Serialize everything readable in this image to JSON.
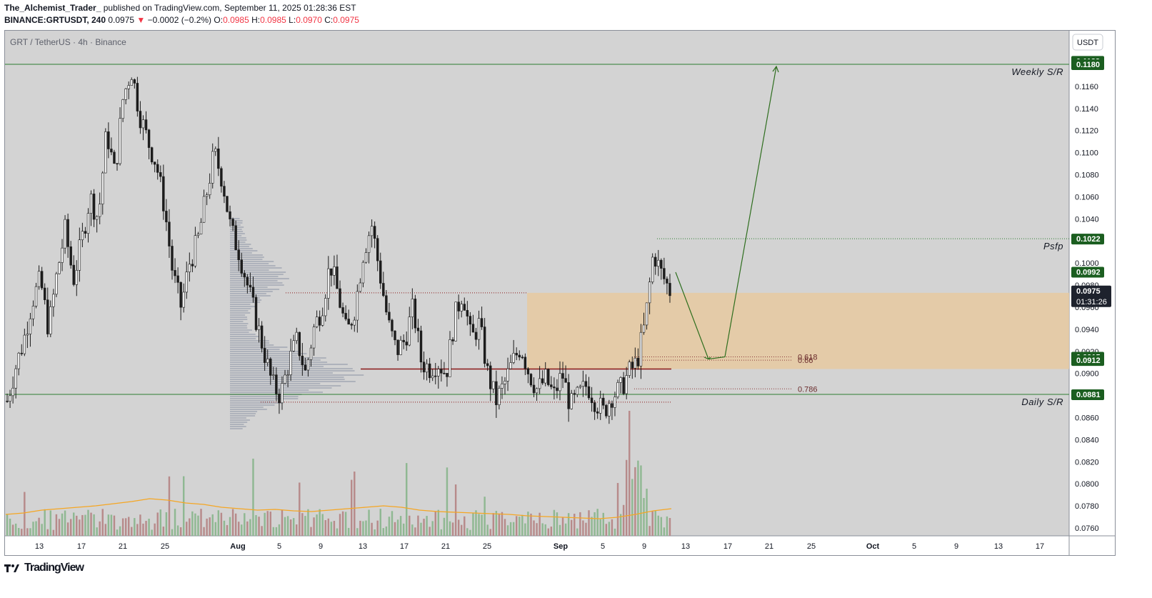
{
  "header": {
    "author": "The_Alchemist_Trader_",
    "published": "published on TradingView.com, September 11, 2025 01:28:36 EST",
    "symbol": "BINANCE:GRTUSDT, 240",
    "last": "0.0975",
    "change_arrow": "▼",
    "change": "−0.0002 (−0.2%)",
    "o_label": "O:",
    "o_value": "0.0985",
    "h_label": "H:",
    "h_value": "0.0985",
    "l_label": "L:",
    "l_value": "0.0970",
    "c_label": "C:",
    "c_value": "0.0975"
  },
  "footer": {
    "brand": "TradingView",
    "logo": "tradingview-logo-icon"
  },
  "colors": {
    "background": "#d3d3d3",
    "candle": "#1c1c1c",
    "zone": "#e6c9a0",
    "green_label": "#1b5e20",
    "current_price_label": "#1e222d",
    "arrow": "#2e6e1e",
    "red_line": "#8b1a1a",
    "fib_line": "#8b3a3a",
    "volume_up": "#8fb892",
    "volume_down": "#b78a8a",
    "volume_ma": "#f5a623"
  },
  "chart_data": {
    "type": "candlestick",
    "title": "GRT / TetherUS · 4h · Binance",
    "currency": "USDT",
    "ylim": [
      0.075,
      0.119
    ],
    "y_ticks": [
      "0.1160",
      "0.1140",
      "0.1120",
      "0.1100",
      "0.1080",
      "0.1060",
      "0.1040",
      "0.1000",
      "0.0980",
      "0.0960",
      "0.0940",
      "0.0920",
      "0.0900",
      "0.0860",
      "0.0840",
      "0.0820",
      "0.0800",
      "0.0780",
      "0.0760"
    ],
    "x_ticks": [
      "13",
      "17",
      "21",
      "25",
      "Aug",
      "5",
      "9",
      "13",
      "17",
      "21",
      "25",
      "Sep",
      "5",
      "9",
      "13",
      "17",
      "21",
      "25",
      "Oct",
      "5",
      "9",
      "13",
      "17"
    ],
    "price_path": [
      0.0875,
      0.0905,
      0.093,
      0.0965,
      0.0985,
      0.094,
      0.099,
      0.103,
      0.0985,
      0.102,
      0.106,
      0.104,
      0.112,
      0.108,
      0.115,
      0.1175,
      0.1135,
      0.111,
      0.109,
      0.105,
      0.099,
      0.096,
      0.1,
      0.102,
      0.106,
      0.11,
      0.1075,
      0.103,
      0.101,
      0.098,
      0.095,
      0.092,
      0.089,
      0.088,
      0.091,
      0.093,
      0.09,
      0.094,
      0.096,
      0.1,
      0.097,
      0.0935,
      0.096,
      0.101,
      0.1035,
      0.099,
      0.0945,
      0.092,
      0.093,
      0.096,
      0.091,
      0.0905,
      0.091,
      0.09,
      0.095,
      0.0975,
      0.093,
      0.0945,
      0.09,
      0.0875,
      0.089,
      0.091,
      0.0925,
      0.09,
      0.0885,
      0.0895,
      0.088,
      0.09,
      0.087,
      0.088,
      0.089,
      0.0875,
      0.0865,
      0.088,
      0.0885,
      0.09,
      0.091,
      0.0945,
      0.101,
      0.099,
      0.0975
    ],
    "price_labels": [
      {
        "value": 0.1183,
        "text": "0.1183",
        "color": "#1b5e20"
      },
      {
        "value": 0.118,
        "text": "0.1180",
        "color": "#1b5e20"
      },
      {
        "value": 0.1022,
        "text": "0.1022",
        "color": "#1b5e20"
      },
      {
        "value": 0.0992,
        "text": "0.0992",
        "color": "#1b5e20"
      },
      {
        "value": 0.0975,
        "text": "0.0975",
        "color": "#1e222d",
        "sub": "01:31:26"
      },
      {
        "value": 0.0915,
        "text": "0.0915",
        "color": "#1b5e20"
      },
      {
        "value": 0.0912,
        "text": "0.0912",
        "color": "#1b5e20"
      },
      {
        "value": 0.0881,
        "text": "0.0881",
        "color": "#1b5e20"
      }
    ],
    "levels": [
      {
        "value": 0.118,
        "label": "Weekly S/R",
        "style": "solid"
      },
      {
        "value": 0.1022,
        "label": "Psfp",
        "style": "dotted"
      },
      {
        "value": 0.0881,
        "label": "Daily S/R",
        "style": "solid"
      }
    ],
    "fib_levels": [
      {
        "ratio": "0.618",
        "value": 0.0915
      },
      {
        "ratio": "0.66",
        "value": 0.0912
      },
      {
        "ratio": "0.786",
        "value": 0.0886
      }
    ],
    "zone": {
      "top": 0.0973,
      "bottom": 0.0904
    },
    "red_lines": [
      0.0973,
      0.0904
    ],
    "volume_ma": [
      0.3,
      0.32,
      0.36,
      0.38,
      0.4,
      0.42,
      0.45,
      0.48,
      0.52,
      0.5,
      0.46,
      0.44,
      0.4,
      0.38,
      0.36,
      0.37,
      0.35,
      0.34,
      0.36,
      0.38,
      0.4,
      0.42,
      0.4,
      0.36,
      0.34,
      0.33,
      0.32,
      0.31,
      0.3,
      0.28,
      0.27,
      0.26,
      0.25,
      0.24,
      0.26,
      0.3,
      0.35,
      0.38
    ]
  }
}
